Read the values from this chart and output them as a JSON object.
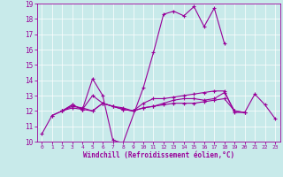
{
  "xlabel": "Windchill (Refroidissement éolien,°C)",
  "xlim": [
    -0.5,
    23.5
  ],
  "ylim": [
    10,
    19
  ],
  "yticks": [
    10,
    11,
    12,
    13,
    14,
    15,
    16,
    17,
    18,
    19
  ],
  "xticks": [
    0,
    1,
    2,
    3,
    4,
    5,
    6,
    7,
    8,
    9,
    10,
    11,
    12,
    13,
    14,
    15,
    16,
    17,
    18,
    19,
    20,
    21,
    22,
    23
  ],
  "bg_color": "#c8eaea",
  "line_color": "#990099",
  "grid_color": "#ffffff",
  "lines": [
    {
      "x": [
        0,
        1,
        2,
        3,
        4,
        5,
        6,
        7,
        8,
        10,
        11,
        12,
        13,
        14,
        15,
        16,
        17,
        18
      ],
      "y": [
        10.5,
        11.7,
        12.0,
        12.4,
        12.1,
        14.1,
        13.0,
        10.1,
        9.9,
        13.5,
        15.8,
        18.3,
        18.5,
        18.2,
        18.8,
        17.5,
        18.7,
        16.4
      ]
    },
    {
      "x": [
        1,
        2,
        3,
        4,
        5,
        6,
        7,
        8,
        9,
        10,
        11,
        12,
        13,
        14,
        15,
        16,
        17,
        18,
        19,
        20,
        21,
        22,
        23
      ],
      "y": [
        11.7,
        12.0,
        12.4,
        12.1,
        12.0,
        12.5,
        12.3,
        12.1,
        12.0,
        12.5,
        12.8,
        12.8,
        12.9,
        13.0,
        13.1,
        13.2,
        13.3,
        13.3,
        11.9,
        11.9,
        13.1,
        12.4,
        11.5
      ]
    },
    {
      "x": [
        2,
        3,
        4,
        5,
        6,
        7,
        8,
        9,
        10,
        11,
        12,
        13,
        14,
        15,
        16,
        17,
        18,
        19,
        20
      ],
      "y": [
        12.0,
        12.2,
        12.1,
        13.0,
        12.5,
        12.3,
        12.2,
        12.0,
        12.2,
        12.3,
        12.4,
        12.5,
        12.5,
        12.5,
        12.6,
        12.7,
        12.8,
        12.0,
        11.9
      ]
    },
    {
      "x": [
        2,
        3,
        4,
        5,
        6,
        7,
        8,
        9,
        10,
        11,
        12,
        13,
        14,
        15,
        16,
        17,
        18,
        19,
        20
      ],
      "y": [
        12.0,
        12.3,
        12.2,
        12.0,
        12.5,
        12.3,
        12.1,
        12.0,
        12.2,
        12.3,
        12.5,
        12.7,
        12.8,
        12.8,
        12.7,
        12.8,
        13.2,
        12.0,
        11.9
      ]
    }
  ]
}
